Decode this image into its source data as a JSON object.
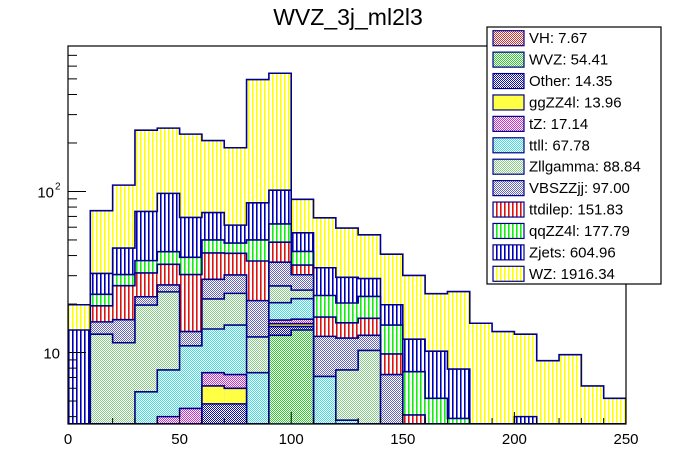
{
  "chart_data": {
    "type": "bar",
    "stacked": true,
    "histogram": true,
    "title": "WVZ_3j_ml2l3",
    "xlabel": "",
    "ylabel": "",
    "xlim": [
      0,
      250
    ],
    "ylim": [
      3.6,
      800
    ],
    "yscale": "log",
    "bin_width": 10,
    "x_bin_edges": [
      0,
      10,
      20,
      30,
      40,
      50,
      60,
      70,
      80,
      90,
      100,
      110,
      120,
      130,
      140,
      150,
      160,
      170,
      180,
      190,
      200,
      210,
      220,
      230,
      240,
      250
    ],
    "x_ticks": [
      0,
      50,
      100,
      150,
      200,
      250
    ],
    "x_tick_labels": [
      "0",
      "50",
      "100",
      "150",
      "200",
      "250"
    ],
    "y_ticks": [
      10,
      100
    ],
    "y_tick_labels": [
      "10",
      "10^2"
    ],
    "legend_position": "top-right",
    "series": [
      {
        "name": "VH",
        "legend": "VH: 7.67",
        "color": "#cc3333",
        "pattern": "checker",
        "values": [
          0,
          0,
          0.3,
          0.3,
          0.3,
          0.3,
          0.4,
          0.4,
          0.3,
          0.3,
          0.3,
          0.3,
          0.3,
          0.3,
          0.3,
          0.3,
          0.2,
          0.3,
          0.2,
          0.2,
          0.2,
          0.2,
          0.2,
          0.2,
          0.2
        ]
      },
      {
        "name": "WVZ",
        "legend": "WVZ: 54.41",
        "color": "#33cc33",
        "pattern": "checker",
        "values": [
          0,
          0,
          0,
          0,
          0,
          0,
          2.8,
          2.8,
          0.3,
          12.5,
          13.5,
          0,
          0,
          0,
          0,
          0,
          0,
          0,
          0,
          0,
          0,
          0,
          0,
          0,
          0
        ]
      },
      {
        "name": "Other",
        "legend": "Other: 14.35",
        "color": "#1111aa",
        "pattern": "checker",
        "values": [
          0,
          0,
          0,
          0.6,
          0.6,
          1.3,
          1.6,
          1.6,
          1.4,
          1.7,
          0.7,
          0,
          0,
          0,
          0,
          0,
          0.3,
          0,
          0,
          0,
          0,
          0,
          0,
          0,
          0
        ]
      },
      {
        "name": "ggZZ4l",
        "legend": "ggZZ4l: 13.96",
        "color": "#ffff44",
        "pattern": "solid",
        "values": [
          0,
          0,
          0.3,
          0.6,
          1.5,
          1.6,
          1.4,
          1.2,
          0.8,
          0.6,
          0.6,
          0,
          0,
          0,
          0,
          0,
          0,
          0,
          0,
          0,
          0,
          0,
          0,
          0,
          0
        ]
      },
      {
        "name": "tZ",
        "legend": "tZ: 17.14",
        "color": "#cc33cc",
        "pattern": "checker",
        "values": [
          0,
          0,
          1.1,
          1.2,
          1.6,
          1.3,
          1.3,
          1.3,
          0.7,
          0.8,
          1.0,
          1.3,
          0,
          0,
          0,
          0,
          0,
          0,
          0,
          0,
          0,
          0,
          0,
          0,
          0
        ]
      },
      {
        "name": "ttll",
        "legend": "ttll: 67.78",
        "color": "#44dddd",
        "pattern": "checker",
        "values": [
          0,
          0.5,
          1.8,
          3.0,
          3.8,
          6.5,
          6.5,
          7.5,
          4.0,
          4.5,
          5.5,
          5.5,
          3.5,
          3.0,
          2.5,
          0.3,
          0,
          0,
          0,
          0,
          0,
          0,
          0,
          0,
          0
        ]
      },
      {
        "name": "Zllgamma",
        "legend": "Zllgamma: 88.84",
        "color": "#88cc88",
        "pattern": "checker",
        "values": [
          0,
          12.5,
          8.0,
          14.0,
          16.0,
          0,
          7.5,
          8.5,
          5.0,
          5.5,
          2.8,
          0,
          4.0,
          7.0,
          0,
          0,
          0,
          0,
          0,
          0,
          0,
          0,
          0,
          0,
          0
        ]
      },
      {
        "name": "VBSZZjj",
        "legend": "VBSZZjj: 97.00",
        "color": "#6666bb",
        "pattern": "checker",
        "values": [
          0,
          2.5,
          4.5,
          2.5,
          2.5,
          2.5,
          7.0,
          7.0,
          8.5,
          10.5,
          6.0,
          5.5,
          4.5,
          2.5,
          4.5,
          2.0,
          0,
          0.6,
          0,
          0,
          0,
          0,
          0,
          0,
          0
        ]
      },
      {
        "name": "ttdilep",
        "legend": "ttdilep: 151.83",
        "color": "#dd1111",
        "pattern": "vlines",
        "values": [
          0,
          4.0,
          10.0,
          9.0,
          9.0,
          17.0,
          13.0,
          11.0,
          16.0,
          12.0,
          4.5,
          4.0,
          3.0,
          3.5,
          2.5,
          1.5,
          1.2,
          0.5,
          0,
          0.3,
          0,
          0,
          0,
          0,
          0
        ]
      },
      {
        "name": "qqZZ4l",
        "legend": "qqZZ4l: 177.79",
        "color": "#11ee11",
        "pattern": "vlines",
        "values": [
          0.8,
          3.5,
          4.5,
          6.0,
          7.0,
          8.5,
          8.5,
          6.5,
          13.0,
          14.5,
          7.5,
          6.0,
          5.0,
          6.0,
          5.0,
          3.5,
          3.5,
          2.5,
          1.5,
          0,
          1.3,
          0,
          0,
          0,
          0
        ]
      },
      {
        "name": "Zjets",
        "legend": "Zjets: 604.96",
        "color": "#0000bb",
        "pattern": "vlines",
        "values": [
          13.0,
          8.0,
          14.0,
          38.0,
          55.0,
          30.0,
          24.0,
          14.0,
          35.0,
          39.0,
          13.0,
          11.0,
          9.0,
          6.5,
          5.0,
          4.5,
          5.0,
          4.0,
          1.0,
          3.0,
          2.5,
          0.7,
          2.5,
          0,
          0
        ]
      },
      {
        "name": "WZ",
        "legend": "WZ: 1916.34",
        "color": "#ffff00",
        "pattern": "vlines",
        "values": [
          6.0,
          45.0,
          65.0,
          165.0,
          150.0,
          158.0,
          133.0,
          125.0,
          410.0,
          440.0,
          34.0,
          35.0,
          30.0,
          25.0,
          21.0,
          18.0,
          13.0,
          16.0,
          12.5,
          10.0,
          9.0,
          8.0,
          7.0,
          6.0,
          5.0
        ]
      }
    ]
  }
}
